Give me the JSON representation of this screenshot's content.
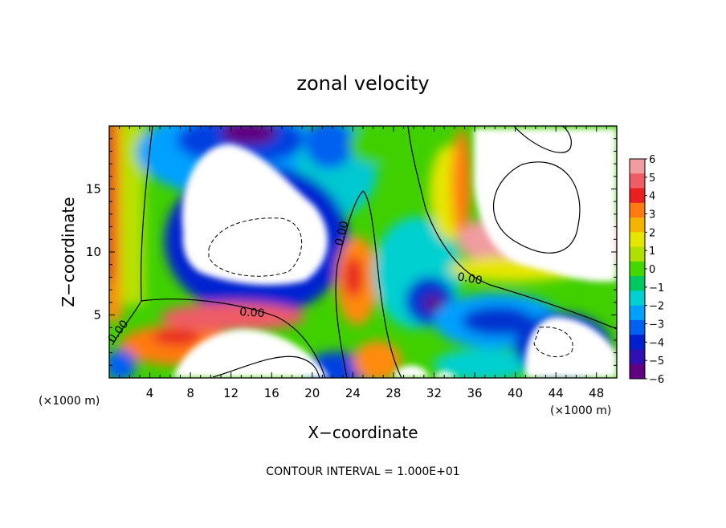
{
  "chart_data": {
    "type": "heatmap",
    "title": "zonal velocity",
    "xlabel": "X−coordinate",
    "ylabel": "Z−coordinate",
    "x_unit": "(×1000 m)",
    "x_unit_right": "(×1000 m)",
    "xlim": [
      0,
      50
    ],
    "ylim": [
      0,
      20
    ],
    "x_ticks": [
      4,
      8,
      12,
      16,
      20,
      24,
      28,
      32,
      36,
      40,
      44,
      48
    ],
    "x_tick_labels": [
      "4",
      "8",
      "12",
      "16",
      "20",
      "24",
      "28",
      "32",
      "36",
      "40",
      "44",
      "48"
    ],
    "y_ticks": [
      5,
      10,
      15
    ],
    "y_tick_labels": [
      "5",
      "10",
      "15"
    ],
    "colorbar": {
      "range": [
        -6,
        6
      ],
      "labels": [
        "6",
        "5",
        "4",
        "3",
        "2",
        "1",
        "0",
        "−1",
        "−2",
        "−3",
        "−4",
        "−5",
        "−6"
      ],
      "colors": [
        "#f09ca0",
        "#ee5c66",
        "#e82020",
        "#ff7a10",
        "#f5b400",
        "#e6e600",
        "#b0e000",
        "#42d800",
        "#00c860",
        "#00d0d0",
        "#00a0ff",
        "#0060f0",
        "#0020d0",
        "#3010b0",
        "#600080"
      ]
    },
    "contour_label": "0.00",
    "contour_interval_text": "CONTOUR INTERVAL = 1.000E+01"
  }
}
